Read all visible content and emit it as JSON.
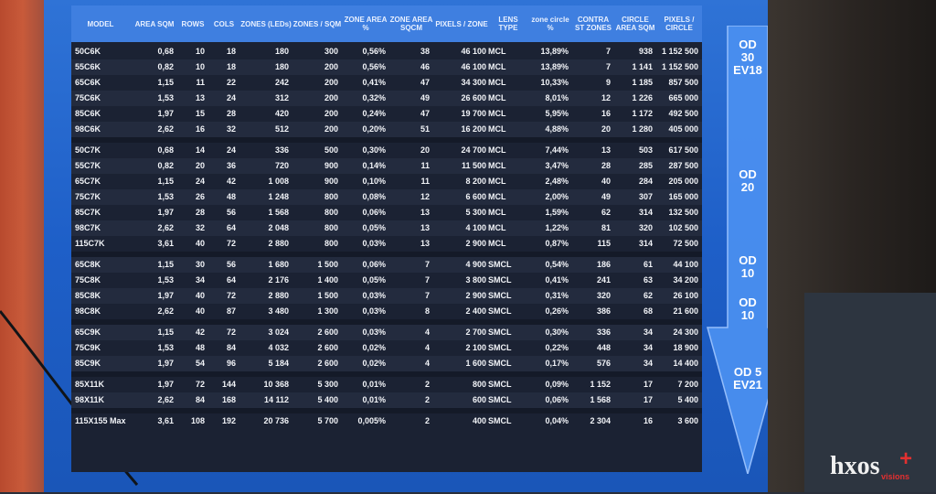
{
  "headers": [
    "MODEL",
    "AREA SQM",
    "ROWS",
    "COLS",
    "ZONES (LEDs)",
    "ZONES / SQM",
    "ZONE AREA %",
    "ZONE AREA SQCM",
    "PIXELS / ZONE",
    "LENS TYPE",
    "zone circle %",
    "CONTRA ST ZONES",
    "CIRCLE AREA SQM",
    "PIXELS / CIRCLE"
  ],
  "groups": [
    [
      [
        "50C6K",
        "0,68",
        "10",
        "18",
        "180",
        "300",
        "0,56%",
        "38",
        "46 100",
        "MCL",
        "13,89%",
        "7",
        "938",
        "1 152 500"
      ],
      [
        "55C6K",
        "0,82",
        "10",
        "18",
        "180",
        "200",
        "0,56%",
        "46",
        "46 100",
        "MCL",
        "13,89%",
        "7",
        "1 141",
        "1 152 500"
      ],
      [
        "65C6K",
        "1,15",
        "11",
        "22",
        "242",
        "200",
        "0,41%",
        "47",
        "34 300",
        "MCL",
        "10,33%",
        "9",
        "1 185",
        "857 500"
      ],
      [
        "75C6K",
        "1,53",
        "13",
        "24",
        "312",
        "200",
        "0,32%",
        "49",
        "26 600",
        "MCL",
        "8,01%",
        "12",
        "1 226",
        "665 000"
      ],
      [
        "85C6K",
        "1,97",
        "15",
        "28",
        "420",
        "200",
        "0,24%",
        "47",
        "19 700",
        "MCL",
        "5,95%",
        "16",
        "1 172",
        "492 500"
      ],
      [
        "98C6K",
        "2,62",
        "16",
        "32",
        "512",
        "200",
        "0,20%",
        "51",
        "16 200",
        "MCL",
        "4,88%",
        "20",
        "1 280",
        "405 000"
      ]
    ],
    [
      [
        "50C7K",
        "0,68",
        "14",
        "24",
        "336",
        "500",
        "0,30%",
        "20",
        "24 700",
        "MCL",
        "7,44%",
        "13",
        "503",
        "617 500"
      ],
      [
        "55C7K",
        "0,82",
        "20",
        "36",
        "720",
        "900",
        "0,14%",
        "11",
        "11 500",
        "MCL",
        "3,47%",
        "28",
        "285",
        "287 500"
      ],
      [
        "65C7K",
        "1,15",
        "24",
        "42",
        "1 008",
        "900",
        "0,10%",
        "11",
        "8 200",
        "MCL",
        "2,48%",
        "40",
        "284",
        "205 000"
      ],
      [
        "75C7K",
        "1,53",
        "26",
        "48",
        "1 248",
        "800",
        "0,08%",
        "12",
        "6 600",
        "MCL",
        "2,00%",
        "49",
        "307",
        "165 000"
      ],
      [
        "85C7K",
        "1,97",
        "28",
        "56",
        "1 568",
        "800",
        "0,06%",
        "13",
        "5 300",
        "MCL",
        "1,59%",
        "62",
        "314",
        "132 500"
      ],
      [
        "98C7K",
        "2,62",
        "32",
        "64",
        "2 048",
        "800",
        "0,05%",
        "13",
        "4 100",
        "MCL",
        "1,22%",
        "81",
        "320",
        "102 500"
      ],
      [
        "115C7K",
        "3,61",
        "40",
        "72",
        "2 880",
        "800",
        "0,03%",
        "13",
        "2 900",
        "MCL",
        "0,87%",
        "115",
        "314",
        "72 500"
      ]
    ],
    [
      [
        "65C8K",
        "1,15",
        "30",
        "56",
        "1 680",
        "1 500",
        "0,06%",
        "7",
        "4 900",
        "SMCL",
        "0,54%",
        "186",
        "61",
        "44 100"
      ],
      [
        "75C8K",
        "1,53",
        "34",
        "64",
        "2 176",
        "1 400",
        "0,05%",
        "7",
        "3 800",
        "SMCL",
        "0,41%",
        "241",
        "63",
        "34 200"
      ],
      [
        "85C8K",
        "1,97",
        "40",
        "72",
        "2 880",
        "1 500",
        "0,03%",
        "7",
        "2 900",
        "SMCL",
        "0,31%",
        "320",
        "62",
        "26 100"
      ],
      [
        "98C8K",
        "2,62",
        "40",
        "87",
        "3 480",
        "1 300",
        "0,03%",
        "8",
        "2 400",
        "SMCL",
        "0,26%",
        "386",
        "68",
        "21 600"
      ]
    ],
    [
      [
        "65C9K",
        "1,15",
        "42",
        "72",
        "3 024",
        "2 600",
        "0,03%",
        "4",
        "2 700",
        "SMCL",
        "0,30%",
        "336",
        "34",
        "24 300"
      ],
      [
        "75C9K",
        "1,53",
        "48",
        "84",
        "4 032",
        "2 600",
        "0,02%",
        "4",
        "2 100",
        "SMCL",
        "0,22%",
        "448",
        "34",
        "18 900"
      ],
      [
        "85C9K",
        "1,97",
        "54",
        "96",
        "5 184",
        "2 600",
        "0,02%",
        "4",
        "1 600",
        "SMCL",
        "0,17%",
        "576",
        "34",
        "14 400"
      ]
    ],
    [
      [
        "85X11K",
        "1,97",
        "72",
        "144",
        "10 368",
        "5 300",
        "0,01%",
        "2",
        "800",
        "SMCL",
        "0,09%",
        "1 152",
        "17",
        "7 200"
      ],
      [
        "98X11K",
        "2,62",
        "84",
        "168",
        "14 112",
        "5 400",
        "0,01%",
        "2",
        "600",
        "SMCL",
        "0,06%",
        "1 568",
        "17",
        "5 400"
      ]
    ],
    [
      [
        "115X155 Max",
        "3,61",
        "108",
        "192",
        "20 736",
        "5 700",
        "0,005%",
        "2",
        "400",
        "SMCL",
        "0,04%",
        "2 304",
        "16",
        "3 600"
      ]
    ]
  ],
  "od_labels": [
    {
      "line1": "OD",
      "line2": "30",
      "line3": "EV18"
    },
    {
      "line1": "OD",
      "line2": "20",
      "line3": ""
    },
    {
      "line1": "OD",
      "line2": "10",
      "line3": ""
    },
    {
      "line1": "OD",
      "line2": "10",
      "line3": ""
    },
    {
      "line1": "OD 5",
      "line2": "EV21",
      "line3": ""
    }
  ],
  "logo": {
    "text": "hxos",
    "sub": "visions",
    "plus": "+"
  },
  "colors": {
    "header": "#3f7fe0",
    "arrow": "#4a8ff0",
    "screen": "#1e5fc8",
    "row_dark": "#1b2233",
    "row_alt": "#232b3e",
    "logo_red": "#e23030"
  }
}
